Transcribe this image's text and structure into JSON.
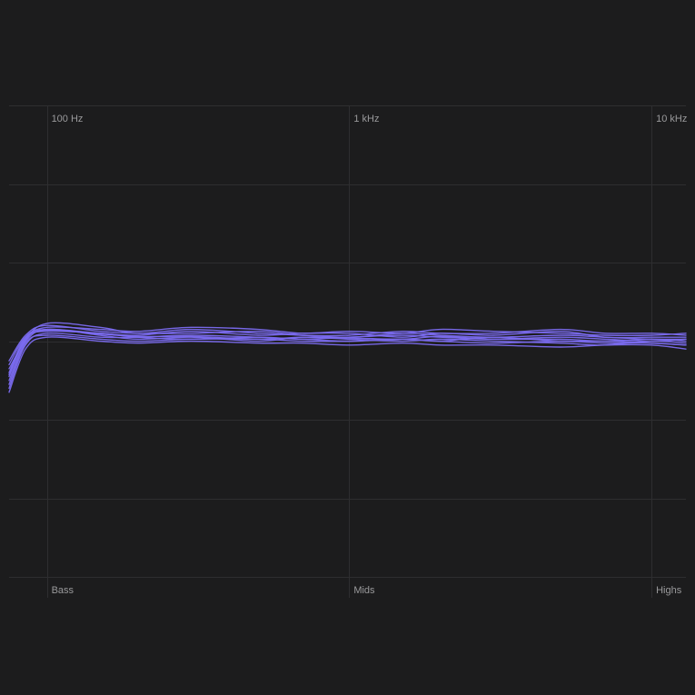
{
  "theme": {
    "background": "#1c1c1d",
    "grid_color": "#2e2e30",
    "label_color": "#9a9a9c",
    "curve_color": "#7b6cf0"
  },
  "chart_data": {
    "type": "line",
    "title": "",
    "xlabel": "",
    "ylabel": "",
    "x_scale": "log",
    "xlim": [
      75,
      13000
    ],
    "ylim": [
      -6,
      6
    ],
    "y_grid_values": [
      -6,
      -4,
      -2,
      0,
      2,
      4,
      6
    ],
    "grid": true,
    "legend": "none",
    "frequency_ticks": [
      {
        "value": 100,
        "label": "100 Hz"
      },
      {
        "value": 1000,
        "label": "1 kHz"
      },
      {
        "value": 10000,
        "label": "10 kHz"
      }
    ],
    "band_labels": [
      {
        "value": 100,
        "label": "Bass"
      },
      {
        "value": 1000,
        "label": "Mids"
      },
      {
        "value": 10000,
        "label": "Highs"
      }
    ],
    "x": [
      75,
      85,
      100,
      150,
      200,
      300,
      500,
      700,
      1000,
      1500,
      2000,
      3000,
      5000,
      7000,
      10000,
      13000
    ],
    "series": [
      {
        "values": [
          -1.0,
          0.0,
          0.45,
          0.35,
          0.2,
          0.3,
          0.2,
          0.15,
          0.1,
          0.2,
          0.15,
          0.1,
          0.15,
          0.1,
          0.05,
          0.05
        ]
      },
      {
        "values": [
          -0.8,
          0.1,
          0.3,
          0.2,
          0.15,
          0.25,
          0.15,
          0.2,
          0.2,
          0.1,
          0.2,
          0.15,
          0.25,
          0.1,
          0.1,
          0.1
        ]
      },
      {
        "values": [
          -1.2,
          -0.1,
          0.2,
          0.1,
          0.1,
          0.15,
          0.1,
          0.05,
          0.0,
          0.05,
          0.0,
          0.1,
          0.0,
          0.0,
          -0.05,
          -0.1
        ]
      },
      {
        "values": [
          -0.9,
          0.05,
          0.35,
          0.3,
          0.25,
          0.35,
          0.3,
          0.2,
          0.25,
          0.2,
          0.3,
          0.25,
          0.2,
          0.15,
          0.15,
          0.2
        ]
      },
      {
        "values": [
          -0.6,
          0.1,
          0.25,
          0.2,
          0.1,
          0.05,
          0.1,
          0.05,
          0.1,
          0.15,
          0.1,
          0.05,
          0.1,
          0.05,
          0.0,
          0.05
        ]
      },
      {
        "values": [
          -0.7,
          0.0,
          0.3,
          0.15,
          0.05,
          0.1,
          0.0,
          0.1,
          0.05,
          0.0,
          0.05,
          0.0,
          -0.05,
          -0.1,
          0.0,
          -0.05
        ]
      },
      {
        "values": [
          -1.1,
          -0.05,
          0.15,
          0.05,
          0.0,
          0.05,
          0.05,
          0.0,
          0.0,
          0.05,
          0.0,
          -0.05,
          0.0,
          -0.05,
          -0.05,
          -0.1
        ]
      },
      {
        "values": [
          -0.5,
          0.15,
          0.4,
          0.25,
          0.2,
          0.2,
          0.25,
          0.15,
          0.15,
          0.25,
          0.2,
          0.2,
          0.3,
          0.2,
          0.2,
          0.15
        ]
      },
      {
        "values": [
          -0.85,
          0.05,
          0.28,
          0.18,
          0.12,
          0.12,
          0.05,
          0.1,
          0.08,
          0.05,
          0.12,
          0.05,
          0.05,
          0.0,
          0.05,
          0.0
        ]
      },
      {
        "values": [
          -1.3,
          -0.2,
          0.1,
          0.0,
          -0.05,
          0.0,
          -0.05,
          -0.05,
          -0.1,
          -0.05,
          -0.1,
          -0.1,
          -0.15,
          -0.1,
          -0.1,
          -0.2
        ]
      }
    ]
  }
}
